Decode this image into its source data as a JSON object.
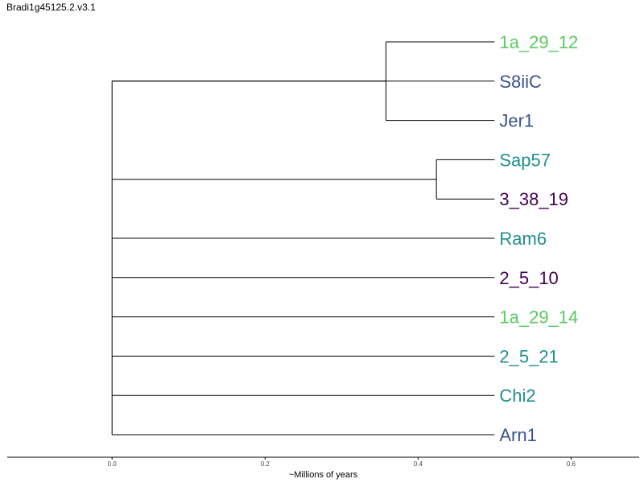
{
  "chart_data": {
    "type": "dendrogram",
    "title": "Bradi1g45125.2.v3.1",
    "xlabel": "~Millions of years",
    "xlim": [
      -0.137,
      0.689
    ],
    "xticks": [
      0.0,
      0.2,
      0.4,
      0.6
    ],
    "xtick_labels": [
      "0.0",
      "0.2",
      "0.4",
      "0.6"
    ],
    "grid": false,
    "legend": "none",
    "leaves": [
      {
        "name": "1a_29_12",
        "color": "#5cc863"
      },
      {
        "name": "S8iiC",
        "color": "#3b528b"
      },
      {
        "name": "Jer1",
        "color": "#3b528b"
      },
      {
        "name": "Sap57",
        "color": "#21908d"
      },
      {
        "name": "3_38_19",
        "color": "#440154"
      },
      {
        "name": "Ram6",
        "color": "#21908d"
      },
      {
        "name": "2_5_10",
        "color": "#440154"
      },
      {
        "name": "1a_29_14",
        "color": "#5cc863"
      },
      {
        "name": "2_5_21",
        "color": "#21908d"
      },
      {
        "name": "Chi2",
        "color": "#21908d"
      },
      {
        "name": "Arn1",
        "color": "#3b528b"
      }
    ],
    "leaf_x": 0.5,
    "internal_nodes": [
      {
        "id": "n_jer",
        "x": 0.358,
        "children": [
          "1a_29_12",
          "Jer1"
        ]
      },
      {
        "id": "n_grp1",
        "x": 0.0,
        "children": [
          "n_jer",
          "S8iiC"
        ]
      },
      {
        "id": "n_sap",
        "x": 0.424,
        "children": [
          "Sap57",
          "3_38_19"
        ]
      },
      {
        "id": "root",
        "x": 0.0,
        "children": [
          "n_grp1",
          "n_sap",
          "Ram6",
          "2_5_10",
          "1a_29_14",
          "2_5_21",
          "Chi2",
          "Arn1"
        ]
      }
    ]
  }
}
